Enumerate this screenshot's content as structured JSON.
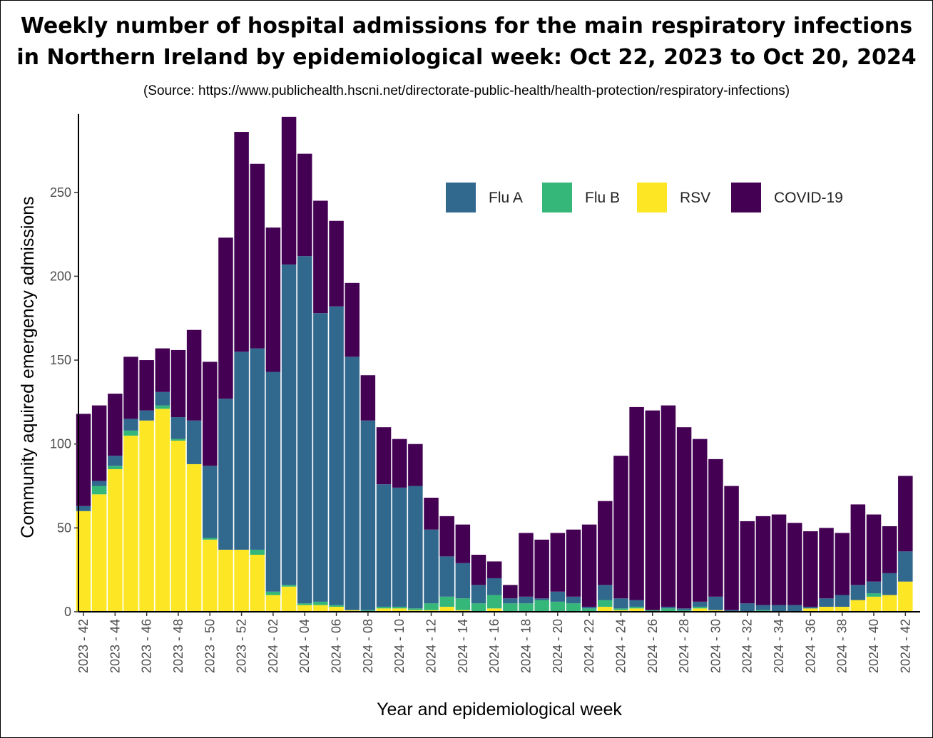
{
  "title_line1": "Weekly number of hospital admissions for the main respiratory infections",
  "title_line2": "in Northern Ireland by epidemiological week: Oct 22, 2023 to Oct 20, 2024",
  "source": "(Source: https://www.publichealth.hscni.net/directorate-public-health/health-protection/respiratory-infections)",
  "chart_data": {
    "type": "bar",
    "stacked": true,
    "xlabel": "Year and epidemiological week",
    "ylabel": "Community aquired emergency admissions",
    "ylim": [
      0,
      295
    ],
    "yticks": [
      0,
      50,
      100,
      150,
      200,
      250
    ],
    "grid": false,
    "legend_position": "top-right",
    "categories": [
      "2023 - 42",
      "2023 - 43",
      "2023 - 44",
      "2023 - 45",
      "2023 - 46",
      "2023 - 47",
      "2023 - 48",
      "2023 - 49",
      "2023 - 50",
      "2023 - 51",
      "2023 - 52",
      "2024 - 01",
      "2024 - 02",
      "2024 - 03",
      "2024 - 04",
      "2024 - 05",
      "2024 - 06",
      "2024 - 07",
      "2024 - 08",
      "2024 - 09",
      "2024 - 10",
      "2024 - 11",
      "2024 - 12",
      "2024 - 13",
      "2024 - 14",
      "2024 - 15",
      "2024 - 16",
      "2024 - 17",
      "2024 - 18",
      "2024 - 19",
      "2024 - 20",
      "2024 - 21",
      "2024 - 22",
      "2024 - 23",
      "2024 - 24",
      "2024 - 25",
      "2024 - 26",
      "2024 - 27",
      "2024 - 28",
      "2024 - 29",
      "2024 - 30",
      "2024 - 31",
      "2024 - 32",
      "2024 - 33",
      "2024 - 34",
      "2024 - 35",
      "2024 - 36",
      "2024 - 37",
      "2024 - 38",
      "2024 - 39",
      "2024 - 40",
      "2024 - 41",
      "2024 - 42"
    ],
    "tick_labels": [
      "2023 - 42",
      "2023 - 44",
      "2023 - 46",
      "2023 - 48",
      "2023 - 50",
      "2023 - 52",
      "2024 - 02",
      "2024 - 04",
      "2024 - 06",
      "2024 - 08",
      "2024 - 10",
      "2024 - 12",
      "2024 - 14",
      "2024 - 16",
      "2024 - 18",
      "2024 - 20",
      "2024 - 22",
      "2024 - 24",
      "2024 - 26",
      "2024 - 28",
      "2024 - 30",
      "2024 - 32",
      "2024 - 34",
      "2024 - 36",
      "2024 - 38",
      "2024 - 40",
      "2024 - 42"
    ],
    "series": [
      {
        "name": "RSV",
        "color": "#fde725",
        "values": [
          60,
          70,
          85,
          105,
          114,
          121,
          102,
          88,
          43,
          37,
          37,
          34,
          10,
          15,
          4,
          4,
          3,
          1,
          0,
          2,
          2,
          1,
          1,
          3,
          1,
          0,
          2,
          0,
          0,
          0,
          0,
          0,
          0,
          3,
          1,
          2,
          0,
          0,
          0,
          2,
          1,
          0,
          0,
          0,
          0,
          0,
          2,
          3,
          3,
          7,
          9,
          10,
          18
        ]
      },
      {
        "name": "Flu B",
        "color": "#35b779",
        "values": [
          0,
          5,
          2,
          3,
          0,
          2,
          1,
          0,
          1,
          0,
          0,
          3,
          2,
          1,
          1,
          2,
          1,
          0,
          1,
          1,
          1,
          1,
          4,
          6,
          7,
          5,
          8,
          5,
          5,
          7,
          6,
          5,
          2,
          4,
          1,
          1,
          1,
          2,
          1,
          1,
          0,
          0,
          0,
          1,
          0,
          0,
          0,
          0,
          0,
          0,
          2,
          0,
          0
        ]
      },
      {
        "name": "Flu A",
        "color": "#31688e",
        "values": [
          3,
          3,
          6,
          7,
          6,
          8,
          13,
          26,
          43,
          90,
          118,
          120,
          131,
          191,
          207,
          172,
          178,
          151,
          113,
          73,
          71,
          73,
          44,
          24,
          21,
          11,
          10,
          3,
          4,
          1,
          6,
          4,
          1,
          9,
          6,
          4,
          0,
          1,
          1,
          3,
          8,
          1,
          5,
          3,
          4,
          4,
          1,
          5,
          7,
          9,
          7,
          13,
          18
        ]
      },
      {
        "name": "COVID-19",
        "color": "#440154",
        "values": [
          55,
          45,
          37,
          37,
          30,
          26,
          40,
          54,
          62,
          96,
          131,
          110,
          86,
          88,
          61,
          67,
          51,
          44,
          27,
          34,
          29,
          25,
          19,
          24,
          23,
          18,
          10,
          8,
          38,
          35,
          35,
          40,
          49,
          50,
          85,
          115,
          119,
          120,
          108,
          97,
          82,
          74,
          49,
          53,
          54,
          49,
          45,
          42,
          37,
          48,
          40,
          28,
          45
        ]
      }
    ]
  }
}
